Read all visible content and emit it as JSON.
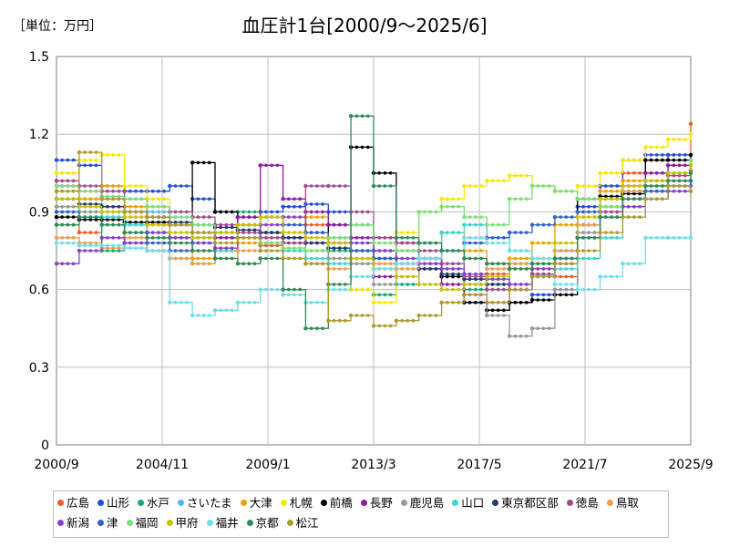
{
  "unit_label": "［単位：万円］",
  "chart_data": {
    "type": "line",
    "title": "血圧計1台[2000/9～2025/6]",
    "ylim": [
      0,
      1.5
    ],
    "y_ticks": [
      "0",
      "0.3",
      "0.6",
      "0.9",
      "1.2",
      "1.5"
    ],
    "x_ticks": [
      "2000/9",
      "2004/11",
      "2009/1",
      "2013/3",
      "2017/5",
      "2021/7",
      "2025/9"
    ],
    "grid": true,
    "legend_position": "bottom",
    "series": [
      {
        "name": "広島",
        "color": "#f15a22",
        "values": [
          0.85,
          0.82,
          0.9,
          0.78,
          0.85,
          0.8,
          0.75,
          0.72,
          0.8,
          0.77,
          0.75,
          0.85,
          0.78,
          0.7,
          0.8,
          0.78,
          0.72,
          0.65,
          0.62,
          0.66,
          0.7,
          0.68,
          0.65,
          0.95,
          1.0,
          1.05,
          1.1,
          1.12,
          1.24
        ]
      },
      {
        "name": "山形",
        "color": "#1f4fd8",
        "values": [
          1.1,
          1.08,
          1.0,
          0.98,
          0.98,
          1.0,
          0.95,
          0.9,
          0.88,
          0.9,
          0.92,
          0.93,
          0.9,
          0.85,
          0.75,
          0.78,
          0.72,
          0.65,
          0.55,
          0.52,
          0.55,
          0.58,
          0.6,
          0.92,
          1.0,
          1.1,
          1.12,
          1.12,
          1.12
        ]
      },
      {
        "name": "水戸",
        "color": "#12a878",
        "values": [
          0.95,
          0.9,
          0.75,
          0.78,
          0.75,
          0.72,
          0.7,
          0.8,
          0.9,
          0.82,
          0.78,
          0.7,
          0.75,
          0.6,
          0.58,
          0.62,
          0.68,
          0.65,
          0.6,
          0.62,
          0.7,
          0.66,
          0.72,
          0.8,
          0.88,
          0.95,
          1.0,
          1.05,
          1.1
        ]
      },
      {
        "name": "さいたま",
        "color": "#4db8f0",
        "values": [
          1.0,
          0.95,
          0.9,
          0.85,
          0.9,
          0.88,
          0.8,
          0.82,
          0.85,
          0.8,
          0.78,
          0.82,
          0.8,
          0.7,
          0.72,
          0.75,
          0.7,
          0.68,
          0.72,
          0.7,
          0.68,
          0.7,
          0.72,
          0.82,
          0.9,
          0.95,
          0.98,
          1.0,
          1.02
        ]
      },
      {
        "name": "大津",
        "color": "#f0a000",
        "values": [
          0.98,
          0.95,
          1.0,
          0.92,
          0.85,
          0.8,
          0.72,
          0.75,
          0.78,
          0.82,
          0.85,
          0.88,
          0.8,
          0.72,
          0.7,
          0.75,
          0.78,
          0.82,
          0.75,
          0.7,
          0.72,
          0.78,
          0.85,
          0.9,
          0.98,
          1.02,
          1.05,
          1.08,
          1.1
        ]
      },
      {
        "name": "札幌",
        "color": "#f8e800",
        "values": [
          1.05,
          1.1,
          1.12,
          1.0,
          0.95,
          0.9,
          0.85,
          0.8,
          0.85,
          0.82,
          0.78,
          0.75,
          0.72,
          0.6,
          0.55,
          0.82,
          0.9,
          0.95,
          1.0,
          1.02,
          1.04,
          1.0,
          0.98,
          1.0,
          1.05,
          1.1,
          1.15,
          1.18,
          1.2
        ]
      },
      {
        "name": "前橋",
        "color": "#000000",
        "values": [
          0.88,
          0.87,
          0.87,
          0.86,
          0.86,
          0.85,
          1.09,
          0.9,
          0.85,
          0.82,
          0.8,
          0.78,
          0.85,
          1.15,
          1.05,
          0.7,
          0.72,
          0.65,
          0.55,
          0.52,
          0.55,
          0.56,
          0.58,
          0.95,
          0.96,
          0.97,
          1.1,
          1.1,
          1.12
        ]
      },
      {
        "name": "長野",
        "color": "#8c1aa8",
        "values": [
          1.0,
          0.98,
          0.95,
          0.9,
          0.88,
          0.85,
          0.82,
          0.8,
          0.88,
          1.08,
          0.95,
          0.9,
          0.85,
          0.8,
          0.65,
          0.7,
          0.68,
          0.62,
          0.58,
          0.55,
          0.6,
          0.65,
          0.7,
          0.85,
          0.95,
          1.0,
          1.05,
          1.08,
          1.1
        ]
      },
      {
        "name": "鹿児島",
        "color": "#999999",
        "values": [
          0.92,
          0.9,
          0.88,
          0.85,
          0.82,
          0.8,
          0.78,
          0.82,
          0.85,
          0.8,
          0.78,
          0.75,
          0.72,
          0.7,
          0.62,
          0.65,
          0.7,
          0.75,
          0.62,
          0.5,
          0.42,
          0.45,
          0.6,
          0.82,
          0.9,
          0.95,
          1.0,
          1.02,
          1.05
        ]
      },
      {
        "name": "山口",
        "color": "#38d6cc",
        "values": [
          0.9,
          0.92,
          0.88,
          0.85,
          0.82,
          0.8,
          0.78,
          0.75,
          0.8,
          0.78,
          0.75,
          0.72,
          0.7,
          0.75,
          0.68,
          0.72,
          0.78,
          0.82,
          0.85,
          0.8,
          0.75,
          0.7,
          0.68,
          0.72,
          0.8,
          0.88,
          0.95,
          1.0,
          1.02
        ]
      },
      {
        "name": "東京都区部",
        "color": "#223a66",
        "values": [
          0.95,
          0.93,
          0.92,
          0.9,
          0.88,
          0.86,
          0.85,
          0.84,
          0.83,
          0.82,
          0.8,
          0.78,
          0.76,
          0.75,
          0.72,
          0.7,
          0.68,
          0.66,
          0.64,
          0.62,
          0.6,
          0.65,
          0.75,
          0.85,
          0.92,
          0.98,
          1.02,
          1.05,
          1.08
        ]
      },
      {
        "name": "徳島",
        "color": "#a04a8c",
        "values": [
          1.02,
          1.0,
          0.98,
          0.95,
          0.92,
          0.9,
          0.88,
          0.85,
          0.82,
          0.8,
          0.78,
          1.0,
          1.0,
          0.9,
          0.8,
          0.78,
          0.75,
          0.7,
          0.65,
          0.6,
          0.62,
          0.66,
          0.7,
          0.8,
          0.9,
          0.98,
          1.02,
          1.04,
          1.06
        ]
      },
      {
        "name": "鳥取",
        "color": "#e8a050",
        "values": [
          0.8,
          0.78,
          0.76,
          0.8,
          0.75,
          0.72,
          0.7,
          0.72,
          0.75,
          0.78,
          0.72,
          0.7,
          0.68,
          0.72,
          0.7,
          0.68,
          0.72,
          0.75,
          0.72,
          0.68,
          0.7,
          0.72,
          0.75,
          0.85,
          0.92,
          0.98,
          1.0,
          1.02,
          1.05
        ]
      },
      {
        "name": "新潟",
        "color": "#8a3ec8",
        "values": [
          0.7,
          0.75,
          0.8,
          0.78,
          0.82,
          0.8,
          0.78,
          0.76,
          0.8,
          0.85,
          0.88,
          0.82,
          0.8,
          0.78,
          0.75,
          0.72,
          0.7,
          0.68,
          0.66,
          0.64,
          0.62,
          0.68,
          0.72,
          0.8,
          0.88,
          0.92,
          0.95,
          0.98,
          1.0
        ]
      },
      {
        "name": "津",
        "color": "#3060c8",
        "values": [
          0.9,
          0.88,
          0.85,
          0.82,
          0.78,
          0.75,
          0.8,
          0.82,
          0.85,
          0.88,
          0.85,
          0.82,
          0.78,
          0.75,
          0.72,
          0.7,
          0.72,
          0.75,
          0.78,
          0.8,
          0.82,
          0.85,
          0.88,
          0.9,
          0.92,
          0.95,
          0.98,
          1.0,
          1.02
        ]
      },
      {
        "name": "福岡",
        "color": "#7ae07a",
        "values": [
          1.0,
          0.98,
          0.96,
          0.95,
          0.92,
          0.88,
          0.85,
          0.82,
          0.8,
          0.78,
          0.76,
          0.75,
          0.8,
          0.85,
          0.78,
          0.75,
          0.9,
          0.92,
          0.88,
          0.85,
          0.95,
          1.0,
          0.98,
          0.95,
          0.92,
          0.95,
          1.0,
          1.05,
          1.1
        ]
      },
      {
        "name": "甲府",
        "color": "#c8c000",
        "values": [
          0.95,
          0.92,
          0.9,
          0.88,
          0.85,
          0.82,
          0.8,
          0.82,
          0.85,
          0.88,
          0.82,
          0.8,
          0.78,
          0.72,
          0.68,
          0.65,
          0.62,
          0.6,
          0.62,
          0.65,
          0.68,
          0.72,
          0.78,
          0.88,
          0.95,
          1.0,
          1.02,
          1.05,
          1.08
        ]
      },
      {
        "name": "福井",
        "color": "#70dde8",
        "values": [
          0.78,
          0.77,
          0.77,
          0.76,
          0.75,
          0.55,
          0.5,
          0.52,
          0.55,
          0.6,
          0.58,
          0.55,
          0.6,
          0.65,
          0.68,
          0.7,
          0.72,
          0.75,
          0.8,
          0.78,
          0.75,
          0.72,
          0.62,
          0.6,
          0.65,
          0.7,
          0.8,
          0.8,
          0.8
        ]
      },
      {
        "name": "京都",
        "color": "#2e8b57",
        "values": [
          0.85,
          0.88,
          0.85,
          0.82,
          0.8,
          0.78,
          0.75,
          0.72,
          0.7,
          0.72,
          0.6,
          0.45,
          0.62,
          1.27,
          1.0,
          0.8,
          0.78,
          0.75,
          0.72,
          0.7,
          0.68,
          0.7,
          0.72,
          0.8,
          0.88,
          0.95,
          1.0,
          1.02,
          1.05
        ]
      },
      {
        "name": "松江",
        "color": "#b09a30",
        "values": [
          0.98,
          1.13,
          0.95,
          0.9,
          0.88,
          0.85,
          0.82,
          0.78,
          0.8,
          0.75,
          0.72,
          0.7,
          0.48,
          0.5,
          0.46,
          0.48,
          0.5,
          0.55,
          0.58,
          0.55,
          0.6,
          0.65,
          0.7,
          0.75,
          0.82,
          0.88,
          0.95,
          1.0,
          0.98
        ]
      }
    ]
  }
}
